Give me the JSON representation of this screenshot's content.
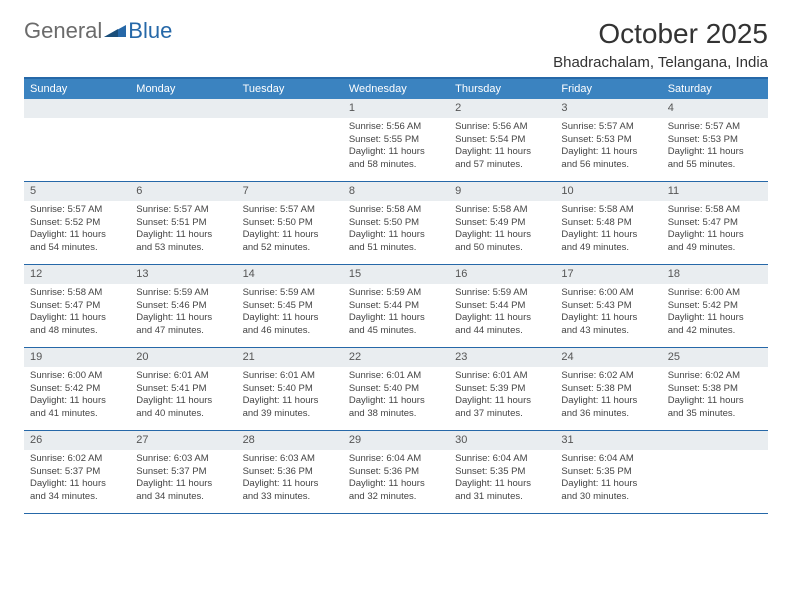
{
  "logo": {
    "general": "General",
    "blue": "Blue"
  },
  "title": "October 2025",
  "location": "Bhadrachalam, Telangana, India",
  "colors": {
    "header_bg": "#3b83c0",
    "border": "#2668a8",
    "daynum_bg": "#e9edf0",
    "logo_gray": "#6b6b6b",
    "logo_blue": "#2668a8"
  },
  "day_names": [
    "Sunday",
    "Monday",
    "Tuesday",
    "Wednesday",
    "Thursday",
    "Friday",
    "Saturday"
  ],
  "weeks": [
    [
      {
        "num": "",
        "sunrise": "",
        "sunset": "",
        "daylight": ""
      },
      {
        "num": "",
        "sunrise": "",
        "sunset": "",
        "daylight": ""
      },
      {
        "num": "",
        "sunrise": "",
        "sunset": "",
        "daylight": ""
      },
      {
        "num": "1",
        "sunrise": "Sunrise: 5:56 AM",
        "sunset": "Sunset: 5:55 PM",
        "daylight": "Daylight: 11 hours and 58 minutes."
      },
      {
        "num": "2",
        "sunrise": "Sunrise: 5:56 AM",
        "sunset": "Sunset: 5:54 PM",
        "daylight": "Daylight: 11 hours and 57 minutes."
      },
      {
        "num": "3",
        "sunrise": "Sunrise: 5:57 AM",
        "sunset": "Sunset: 5:53 PM",
        "daylight": "Daylight: 11 hours and 56 minutes."
      },
      {
        "num": "4",
        "sunrise": "Sunrise: 5:57 AM",
        "sunset": "Sunset: 5:53 PM",
        "daylight": "Daylight: 11 hours and 55 minutes."
      }
    ],
    [
      {
        "num": "5",
        "sunrise": "Sunrise: 5:57 AM",
        "sunset": "Sunset: 5:52 PM",
        "daylight": "Daylight: 11 hours and 54 minutes."
      },
      {
        "num": "6",
        "sunrise": "Sunrise: 5:57 AM",
        "sunset": "Sunset: 5:51 PM",
        "daylight": "Daylight: 11 hours and 53 minutes."
      },
      {
        "num": "7",
        "sunrise": "Sunrise: 5:57 AM",
        "sunset": "Sunset: 5:50 PM",
        "daylight": "Daylight: 11 hours and 52 minutes."
      },
      {
        "num": "8",
        "sunrise": "Sunrise: 5:58 AM",
        "sunset": "Sunset: 5:50 PM",
        "daylight": "Daylight: 11 hours and 51 minutes."
      },
      {
        "num": "9",
        "sunrise": "Sunrise: 5:58 AM",
        "sunset": "Sunset: 5:49 PM",
        "daylight": "Daylight: 11 hours and 50 minutes."
      },
      {
        "num": "10",
        "sunrise": "Sunrise: 5:58 AM",
        "sunset": "Sunset: 5:48 PM",
        "daylight": "Daylight: 11 hours and 49 minutes."
      },
      {
        "num": "11",
        "sunrise": "Sunrise: 5:58 AM",
        "sunset": "Sunset: 5:47 PM",
        "daylight": "Daylight: 11 hours and 49 minutes."
      }
    ],
    [
      {
        "num": "12",
        "sunrise": "Sunrise: 5:58 AM",
        "sunset": "Sunset: 5:47 PM",
        "daylight": "Daylight: 11 hours and 48 minutes."
      },
      {
        "num": "13",
        "sunrise": "Sunrise: 5:59 AM",
        "sunset": "Sunset: 5:46 PM",
        "daylight": "Daylight: 11 hours and 47 minutes."
      },
      {
        "num": "14",
        "sunrise": "Sunrise: 5:59 AM",
        "sunset": "Sunset: 5:45 PM",
        "daylight": "Daylight: 11 hours and 46 minutes."
      },
      {
        "num": "15",
        "sunrise": "Sunrise: 5:59 AM",
        "sunset": "Sunset: 5:44 PM",
        "daylight": "Daylight: 11 hours and 45 minutes."
      },
      {
        "num": "16",
        "sunrise": "Sunrise: 5:59 AM",
        "sunset": "Sunset: 5:44 PM",
        "daylight": "Daylight: 11 hours and 44 minutes."
      },
      {
        "num": "17",
        "sunrise": "Sunrise: 6:00 AM",
        "sunset": "Sunset: 5:43 PM",
        "daylight": "Daylight: 11 hours and 43 minutes."
      },
      {
        "num": "18",
        "sunrise": "Sunrise: 6:00 AM",
        "sunset": "Sunset: 5:42 PM",
        "daylight": "Daylight: 11 hours and 42 minutes."
      }
    ],
    [
      {
        "num": "19",
        "sunrise": "Sunrise: 6:00 AM",
        "sunset": "Sunset: 5:42 PM",
        "daylight": "Daylight: 11 hours and 41 minutes."
      },
      {
        "num": "20",
        "sunrise": "Sunrise: 6:01 AM",
        "sunset": "Sunset: 5:41 PM",
        "daylight": "Daylight: 11 hours and 40 minutes."
      },
      {
        "num": "21",
        "sunrise": "Sunrise: 6:01 AM",
        "sunset": "Sunset: 5:40 PM",
        "daylight": "Daylight: 11 hours and 39 minutes."
      },
      {
        "num": "22",
        "sunrise": "Sunrise: 6:01 AM",
        "sunset": "Sunset: 5:40 PM",
        "daylight": "Daylight: 11 hours and 38 minutes."
      },
      {
        "num": "23",
        "sunrise": "Sunrise: 6:01 AM",
        "sunset": "Sunset: 5:39 PM",
        "daylight": "Daylight: 11 hours and 37 minutes."
      },
      {
        "num": "24",
        "sunrise": "Sunrise: 6:02 AM",
        "sunset": "Sunset: 5:38 PM",
        "daylight": "Daylight: 11 hours and 36 minutes."
      },
      {
        "num": "25",
        "sunrise": "Sunrise: 6:02 AM",
        "sunset": "Sunset: 5:38 PM",
        "daylight": "Daylight: 11 hours and 35 minutes."
      }
    ],
    [
      {
        "num": "26",
        "sunrise": "Sunrise: 6:02 AM",
        "sunset": "Sunset: 5:37 PM",
        "daylight": "Daylight: 11 hours and 34 minutes."
      },
      {
        "num": "27",
        "sunrise": "Sunrise: 6:03 AM",
        "sunset": "Sunset: 5:37 PM",
        "daylight": "Daylight: 11 hours and 34 minutes."
      },
      {
        "num": "28",
        "sunrise": "Sunrise: 6:03 AM",
        "sunset": "Sunset: 5:36 PM",
        "daylight": "Daylight: 11 hours and 33 minutes."
      },
      {
        "num": "29",
        "sunrise": "Sunrise: 6:04 AM",
        "sunset": "Sunset: 5:36 PM",
        "daylight": "Daylight: 11 hours and 32 minutes."
      },
      {
        "num": "30",
        "sunrise": "Sunrise: 6:04 AM",
        "sunset": "Sunset: 5:35 PM",
        "daylight": "Daylight: 11 hours and 31 minutes."
      },
      {
        "num": "31",
        "sunrise": "Sunrise: 6:04 AM",
        "sunset": "Sunset: 5:35 PM",
        "daylight": "Daylight: 11 hours and 30 minutes."
      },
      {
        "num": "",
        "sunrise": "",
        "sunset": "",
        "daylight": ""
      }
    ]
  ]
}
